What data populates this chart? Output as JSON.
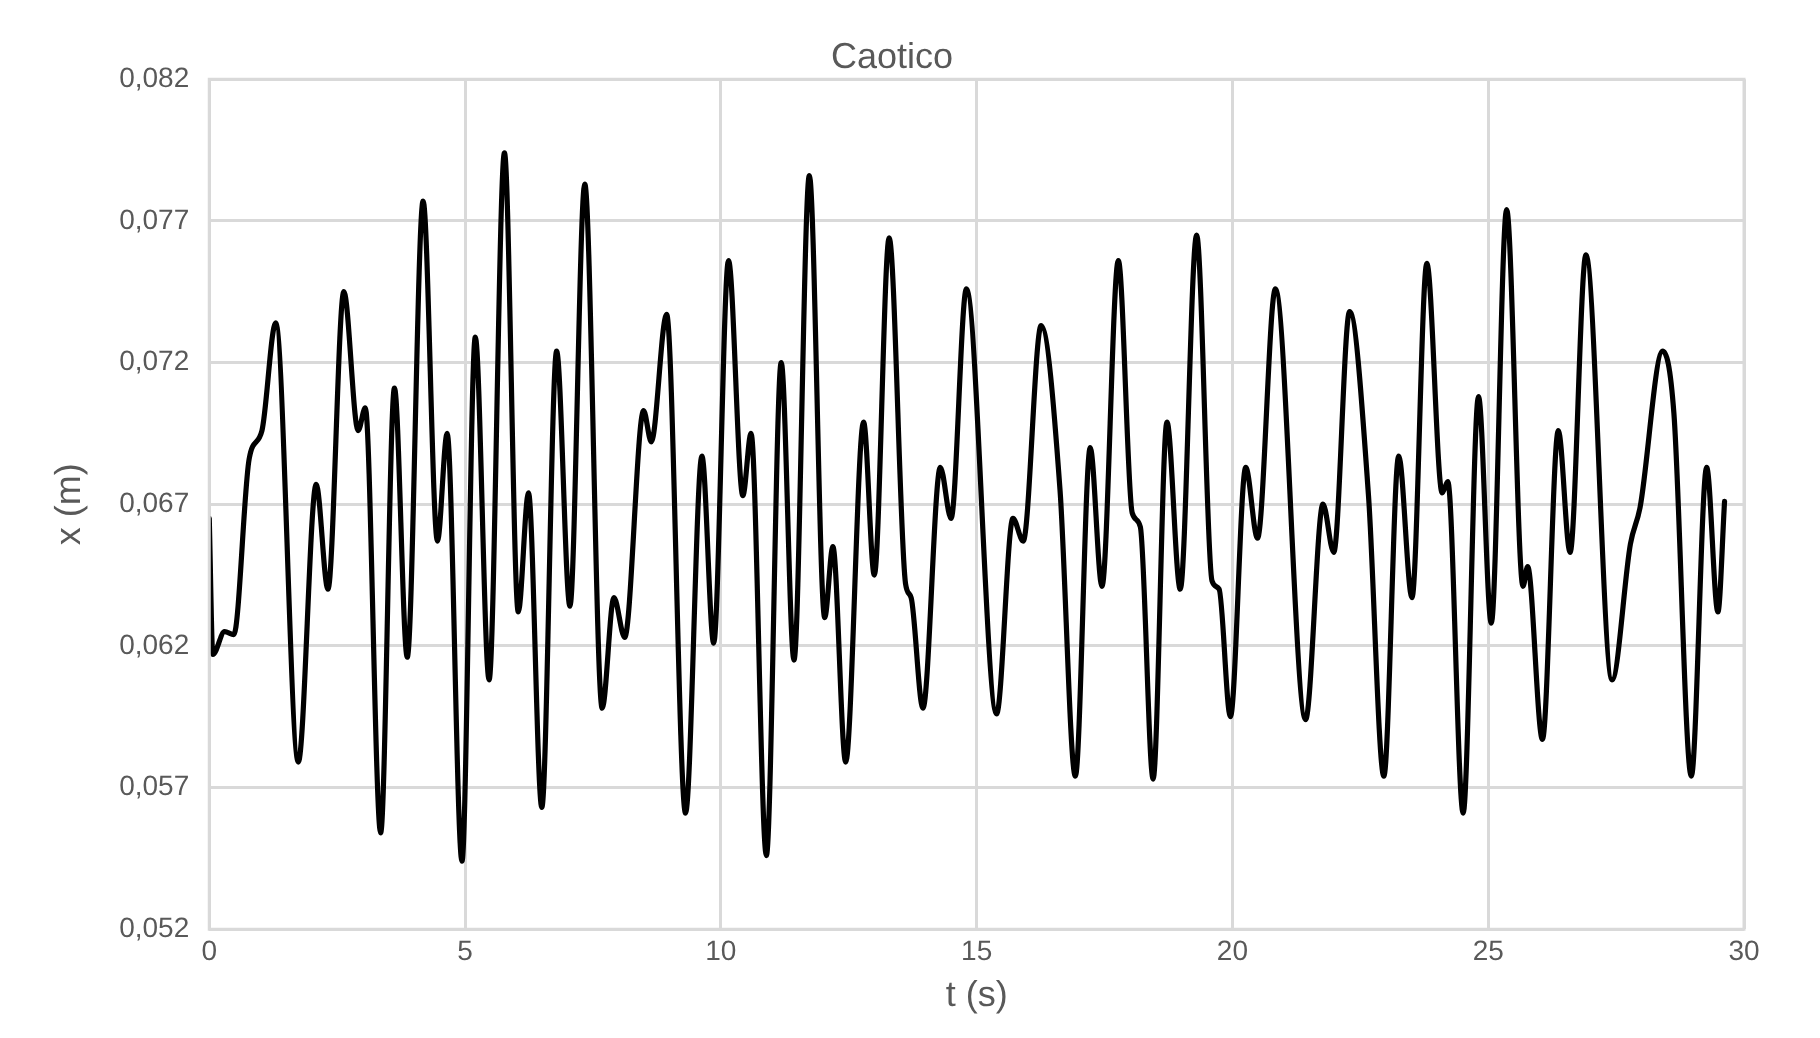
{
  "chart_data": {
    "type": "line",
    "title": "Caotico",
    "xlabel": "t (s)",
    "ylabel": "x (m)",
    "x": [
      0,
      0.07,
      0.3,
      0.48,
      0.78,
      1.03,
      1.3,
      1.74,
      2.09,
      2.32,
      2.63,
      2.91,
      3.05,
      3.35,
      3.62,
      3.87,
      4.18,
      4.46,
      4.65,
      4.94,
      5.2,
      5.47,
      5.77,
      6.04,
      6.24,
      6.5,
      6.79,
      7.05,
      7.34,
      7.68,
      7.91,
      8.12,
      8.49,
      8.64,
      8.94,
      9.31,
      9.63,
      9.86,
      10.15,
      10.43,
      10.59,
      10.89,
      11.18,
      11.43,
      11.73,
      12.03,
      12.19,
      12.44,
      12.79,
      13.0,
      13.29,
      13.61,
      13.72,
      13.95,
      14.29,
      14.5,
      14.8,
      15.39,
      15.71,
      15.91,
      16.26,
      16.63,
      16.93,
      17.22,
      17.45,
      17.77,
      18.04,
      18.2,
      18.45,
      18.72,
      18.98,
      19.3,
      19.6,
      19.74,
      19.96,
      20.26,
      20.49,
      20.84,
      21.43,
      21.77,
      21.98,
      22.29,
      22.66,
      22.96,
      23.25,
      23.51,
      23.8,
      24.1,
      24.21,
      24.51,
      24.81,
      25.06,
      25.36,
      25.68,
      25.77,
      26.06,
      26.37,
      26.6,
      26.91,
      27.42,
      27.78,
      27.97,
      28.41,
      28.63,
      28.97,
      29.27,
      29.49,
      29.62
    ],
    "series": [
      {
        "color": "#000000",
        "values": [
          0.0665,
          0.0617,
          0.0625,
          0.0624,
          0.0686,
          0.0696,
          0.0734,
          0.0579,
          0.0677,
          0.064,
          0.0745,
          0.0696,
          0.0704,
          0.0554,
          0.0711,
          0.0616,
          0.0777,
          0.0657,
          0.0695,
          0.0544,
          0.0729,
          0.0608,
          0.0794,
          0.0632,
          0.0674,
          0.0563,
          0.0724,
          0.0634,
          0.0783,
          0.0598,
          0.0637,
          0.0623,
          0.0703,
          0.0692,
          0.0737,
          0.0561,
          0.0687,
          0.0621,
          0.0756,
          0.0673,
          0.0695,
          0.0546,
          0.072,
          0.0615,
          0.0786,
          0.063,
          0.0655,
          0.0579,
          0.0699,
          0.0645,
          0.0764,
          0.0642,
          0.0637,
          0.0598,
          0.0683,
          0.0665,
          0.0746,
          0.0596,
          0.0665,
          0.0657,
          0.0733,
          0.0675,
          0.0574,
          0.069,
          0.0641,
          0.0756,
          0.0667,
          0.0662,
          0.0573,
          0.0699,
          0.064,
          0.0765,
          0.0643,
          0.064,
          0.0595,
          0.0683,
          0.0658,
          0.0746,
          0.0594,
          0.067,
          0.0653,
          0.0738,
          0.0673,
          0.0574,
          0.0687,
          0.0637,
          0.0755,
          0.0674,
          0.0678,
          0.0561,
          0.0708,
          0.0628,
          0.0774,
          0.0641,
          0.0648,
          0.0587,
          0.0696,
          0.0653,
          0.0758,
          0.0608,
          0.0656,
          0.0669,
          0.0724,
          0.0702,
          0.0574,
          0.0683,
          0.0632,
          0.0671
        ]
      }
    ],
    "xlim": [
      0,
      30
    ],
    "xticks": [
      0,
      5,
      10,
      15,
      20,
      25,
      30
    ],
    "ylim": [
      0.052,
      0.082
    ],
    "yticks": [
      {
        "value": 0.052,
        "label": "0,052"
      },
      {
        "value": 0.057,
        "label": "0,057"
      },
      {
        "value": 0.062,
        "label": "0,062"
      },
      {
        "value": 0.067,
        "label": "0,067"
      },
      {
        "value": 0.072,
        "label": "0,072"
      },
      {
        "value": 0.077,
        "label": "0,077"
      },
      {
        "value": 0.082,
        "label": "0,082"
      }
    ],
    "grid": true,
    "legend": false,
    "marker": "none",
    "line_style": "solid"
  }
}
